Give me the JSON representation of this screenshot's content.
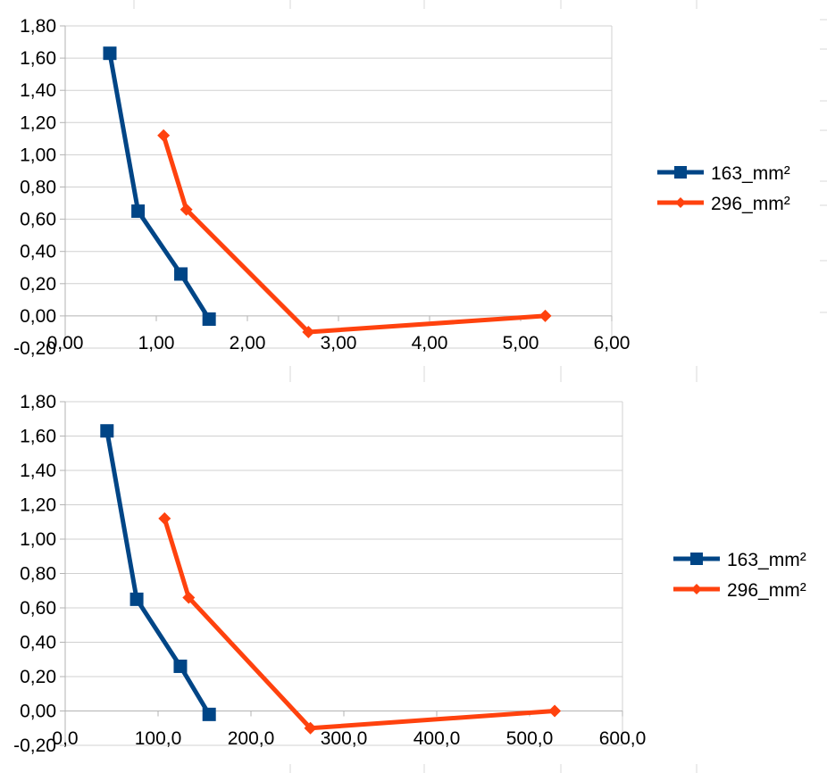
{
  "colors": {
    "series1": "#004586",
    "series2": "#ff420e"
  },
  "chart_data": [
    {
      "type": "scatter",
      "x_ticks": [
        "0,00",
        "1,00",
        "2,00",
        "3,00",
        "4,00",
        "5,00",
        "6,00"
      ],
      "y_ticks": [
        "-0,20",
        "0,00",
        "0,20",
        "0,40",
        "0,60",
        "0,80",
        "1,00",
        "1,20",
        "1,40",
        "1,60",
        "1,80"
      ],
      "xlim": [
        0,
        6
      ],
      "ylim": [
        -0.2,
        1.8
      ],
      "grid": true,
      "legend_position": "right",
      "series": [
        {
          "name": "163_mm²",
          "marker": "square",
          "color_key": "series1",
          "points": [
            [
              0.49,
              1.63
            ],
            [
              0.8,
              0.65
            ],
            [
              1.27,
              0.26
            ],
            [
              1.58,
              -0.02
            ]
          ]
        },
        {
          "name": "296_mm²",
          "marker": "diamond",
          "color_key": "series2",
          "points": [
            [
              1.08,
              1.12
            ],
            [
              1.33,
              0.66
            ],
            [
              2.67,
              -0.1
            ],
            [
              5.27,
              0.0
            ]
          ]
        }
      ]
    },
    {
      "type": "scatter",
      "x_ticks": [
        "0,0",
        "100,0",
        "200,0",
        "300,0",
        "400,0",
        "500,0",
        "600,0"
      ],
      "y_ticks": [
        "-0,20",
        "0,00",
        "0,20",
        "0,40",
        "0,60",
        "0,80",
        "1,00",
        "1,20",
        "1,40",
        "1,60",
        "1,80"
      ],
      "xlim": [
        0,
        600
      ],
      "ylim": [
        -0.2,
        1.8
      ],
      "grid": true,
      "legend_position": "right",
      "series": [
        {
          "name": "163_mm²",
          "marker": "square",
          "color_key": "series1",
          "points": [
            [
              45,
              1.63
            ],
            [
              77,
              0.65
            ],
            [
              124,
              0.26
            ],
            [
              155,
              -0.02
            ]
          ]
        },
        {
          "name": "296_mm²",
          "marker": "diamond",
          "color_key": "series2",
          "points": [
            [
              107,
              1.12
            ],
            [
              133,
              0.66
            ],
            [
              264,
              -0.1
            ],
            [
              527,
              0.0
            ]
          ]
        }
      ]
    }
  ]
}
